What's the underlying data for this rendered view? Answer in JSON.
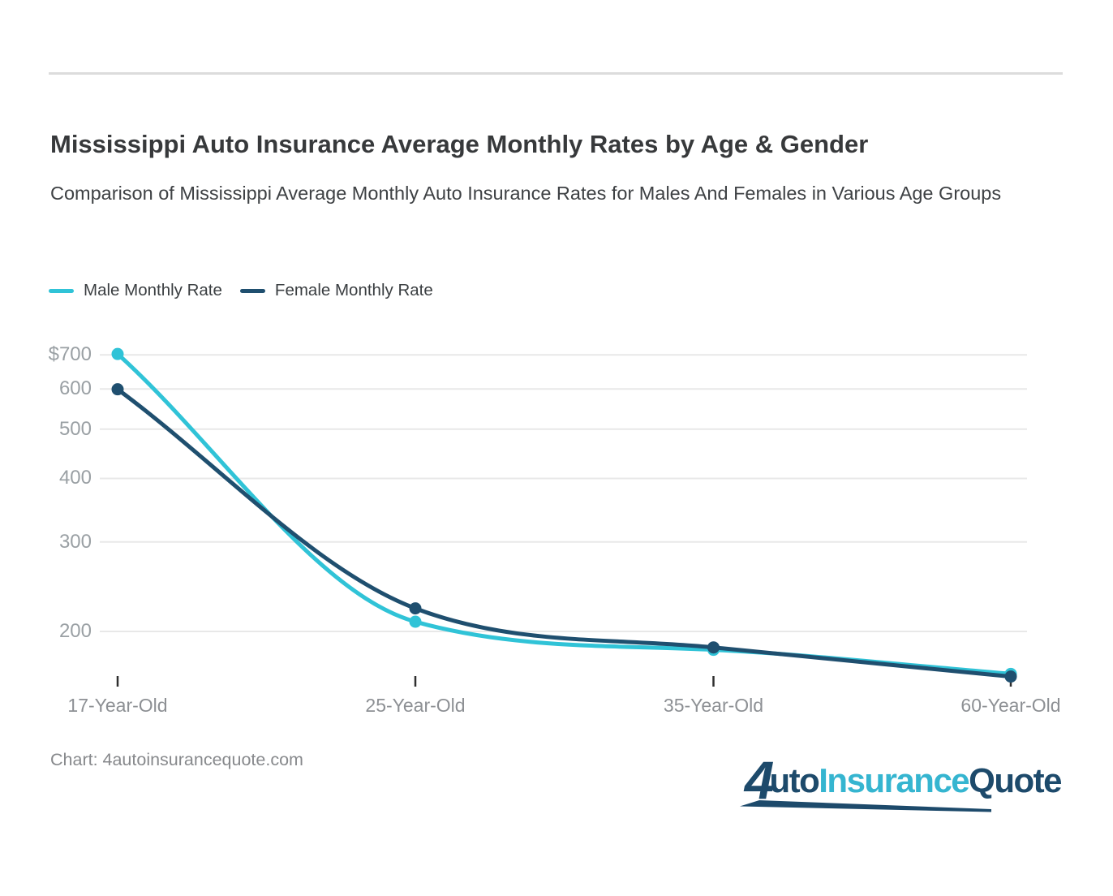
{
  "header": {
    "title": "Mississippi Auto Insurance Average Monthly Rates by Age & Gender",
    "subtitle": "Comparison of Mississippi Average Monthly Auto Insurance Rates for Males And Females in Various Age Groups"
  },
  "legend": {
    "items": [
      {
        "label": "Male Monthly Rate",
        "color": "#30c3d7"
      },
      {
        "label": "Female Monthly Rate",
        "color": "#1f4f6f"
      }
    ]
  },
  "chart_data": {
    "type": "line",
    "title": "Mississippi Auto Insurance Average Monthly Rates by Age & Gender",
    "subtitle": "Comparison of Mississippi Average Monthly Auto Insurance Rates for Males And Females in Various Age Groups",
    "categories": [
      "17-Year-Old",
      "25-Year-Old",
      "35-Year-Old",
      "60-Year-Old"
    ],
    "series": [
      {
        "name": "Male Monthly Rate",
        "color": "#30c3d7",
        "values": [
          703,
          209,
          184,
          165
        ]
      },
      {
        "name": "Female Monthly Rate",
        "color": "#1f4f6f",
        "values": [
          599,
          222,
          186,
          163
        ]
      }
    ],
    "unit": "$ per month",
    "xlabel": "",
    "ylabel": "",
    "y_axis": {
      "scale": "logarithmic",
      "ticks": [
        {
          "value": 700,
          "label": "$700"
        },
        {
          "value": 600,
          "label": "600"
        },
        {
          "value": 500,
          "label": "500"
        },
        {
          "value": 400,
          "label": "400"
        },
        {
          "value": 300,
          "label": "300"
        },
        {
          "value": 200,
          "label": "200"
        }
      ]
    },
    "grid": true,
    "legend_position": "top-left"
  },
  "footer": {
    "caption": "Chart: 4autoinsurancequote.com",
    "logo": {
      "prefix": "4",
      "word1": "uto",
      "word2": "Insurance",
      "word3": "Quote",
      "navy": "#1d4a6b",
      "cyan": "#35b5d0"
    }
  },
  "colors": {
    "gridline": "#e8e8e8",
    "tick_mark": "#2f2f2f",
    "y_label": "#9aa0a4",
    "x_label": "#8d9094",
    "divider": "#dcdcdc"
  }
}
